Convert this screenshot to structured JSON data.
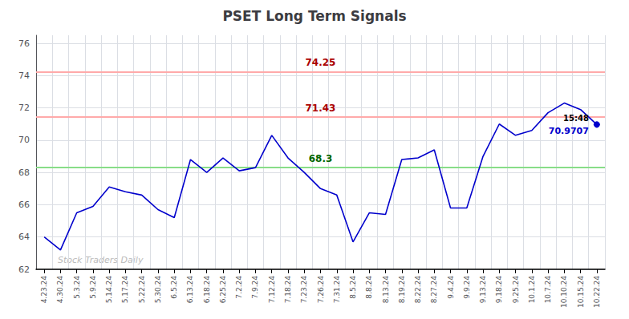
{
  "chart_data": {
    "type": "line",
    "title": "PSET Long Term Signals",
    "categories": [
      "4.23.24",
      "4.30.24",
      "5.3.24",
      "5.9.24",
      "5.14.24",
      "5.17.24",
      "5.22.24",
      "5.30.24",
      "6.5.24",
      "6.13.24",
      "6.18.24",
      "6.25.24",
      "7.2.24",
      "7.9.24",
      "7.12.24",
      "7.18.24",
      "7.23.24",
      "7.26.24",
      "7.31.24",
      "8.5.24",
      "8.8.24",
      "8.13.24",
      "8.19.24",
      "8.22.24",
      "8.27.24",
      "9.4.24",
      "9.9.24",
      "9.13.24",
      "9.18.24",
      "9.25.24",
      "10.1.24",
      "10.7.24",
      "10.10.24",
      "10.15.24",
      "10.22.24"
    ],
    "values": [
      64.0,
      63.2,
      65.5,
      65.9,
      67.1,
      66.8,
      66.6,
      65.7,
      65.2,
      68.8,
      68.0,
      68.9,
      68.1,
      68.3,
      70.3,
      68.9,
      68.0,
      67.0,
      66.6,
      63.7,
      65.5,
      65.4,
      68.8,
      68.9,
      69.4,
      65.8,
      65.8,
      69.0,
      71.0,
      70.3,
      70.6,
      71.7,
      72.3,
      71.9,
      70.97
    ],
    "color": "#0000cc",
    "ylim": [
      62,
      76.5
    ],
    "yticks": [
      62,
      64,
      66,
      68,
      70,
      72,
      74,
      76
    ],
    "grid": true,
    "hlines": [
      {
        "value": 74.25,
        "label": "74.25",
        "color": "#ffaaaa",
        "label_color": "#aa0000"
      },
      {
        "value": 71.43,
        "label": "71.43",
        "color": "#ffaaaa",
        "label_color": "#aa0000"
      },
      {
        "value": 68.3,
        "label": "68.3",
        "color": "#88dd88",
        "label_color": "#006600"
      }
    ],
    "last_point": {
      "time_label": "15:48",
      "time_label_color": "#000000",
      "value_label": "70.9707",
      "color": "#0000cc"
    },
    "watermark": {
      "text": "Stock Traders Daily",
      "color": "#bbbbbb"
    }
  }
}
